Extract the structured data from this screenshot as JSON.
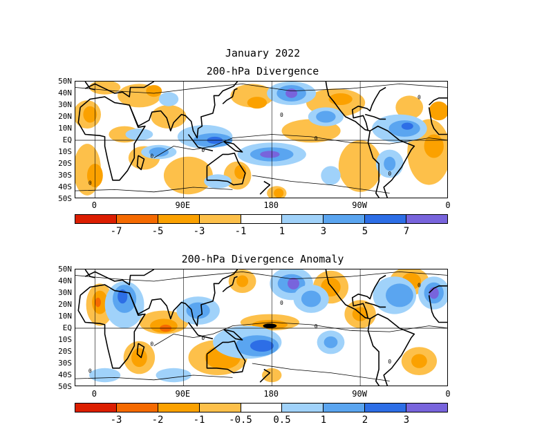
{
  "header": {
    "date_title": "January 2022"
  },
  "palette": {
    "strong_neg": "#dc1e00",
    "neg2": "#f56a00",
    "neg3": "#fba100",
    "neg4": "#fdc04a",
    "neutral": "#ffffff",
    "pos1": "#a0d2fa",
    "pos2": "#5aa5f0",
    "pos3": "#2d6ee6",
    "pos4": "#7864dc",
    "coast": "#000000"
  },
  "axes": {
    "lat_ticks": [
      "50N",
      "40N",
      "30N",
      "20N",
      "10N",
      "EQ",
      "10S",
      "20S",
      "30S",
      "40S",
      "50S"
    ],
    "lat_values": [
      50,
      40,
      30,
      20,
      10,
      0,
      -10,
      -20,
      -30,
      -40,
      -50
    ],
    "lon_ticks": [
      "0",
      "90E",
      "180",
      "90W",
      "0"
    ],
    "lon_values": [
      0,
      90,
      180,
      270,
      360
    ],
    "lon_range": [
      -20,
      360
    ],
    "lat_range": [
      -50,
      50
    ]
  },
  "panels": [
    {
      "title": "200-hPa Divergence",
      "contour_label": "0",
      "colorbar": {
        "colors": [
          "#dc1e00",
          "#f56a00",
          "#fba100",
          "#fdc04a",
          "#ffffff",
          "#a0d2fa",
          "#5aa5f0",
          "#2d6ee6",
          "#7864dc"
        ],
        "labels": [
          "-7",
          "-5",
          "-3",
          "-1",
          "1",
          "3",
          "5",
          "7"
        ],
        "label_boundaries": [
          1,
          2,
          3,
          4,
          5,
          6,
          7,
          8
        ]
      },
      "blobs": [
        {
          "lon": 395,
          "lat": 0.5,
          "c": "pos2"
        }
      ]
    },
    {
      "title": "200-hPa Divergence Anomaly",
      "contour_label": "0",
      "colorbar": {
        "colors": [
          "#dc1e00",
          "#f56a00",
          "#fba100",
          "#fdc04a",
          "#ffffff",
          "#a0d2fa",
          "#5aa5f0",
          "#2d6ee6",
          "#7864dc"
        ],
        "labels": [
          "-3",
          "-2",
          "-1",
          "-0.5",
          "0.5",
          "1",
          "2",
          "3"
        ],
        "label_boundaries": [
          1,
          2,
          3,
          4,
          5,
          6,
          7,
          8
        ]
      }
    }
  ]
}
